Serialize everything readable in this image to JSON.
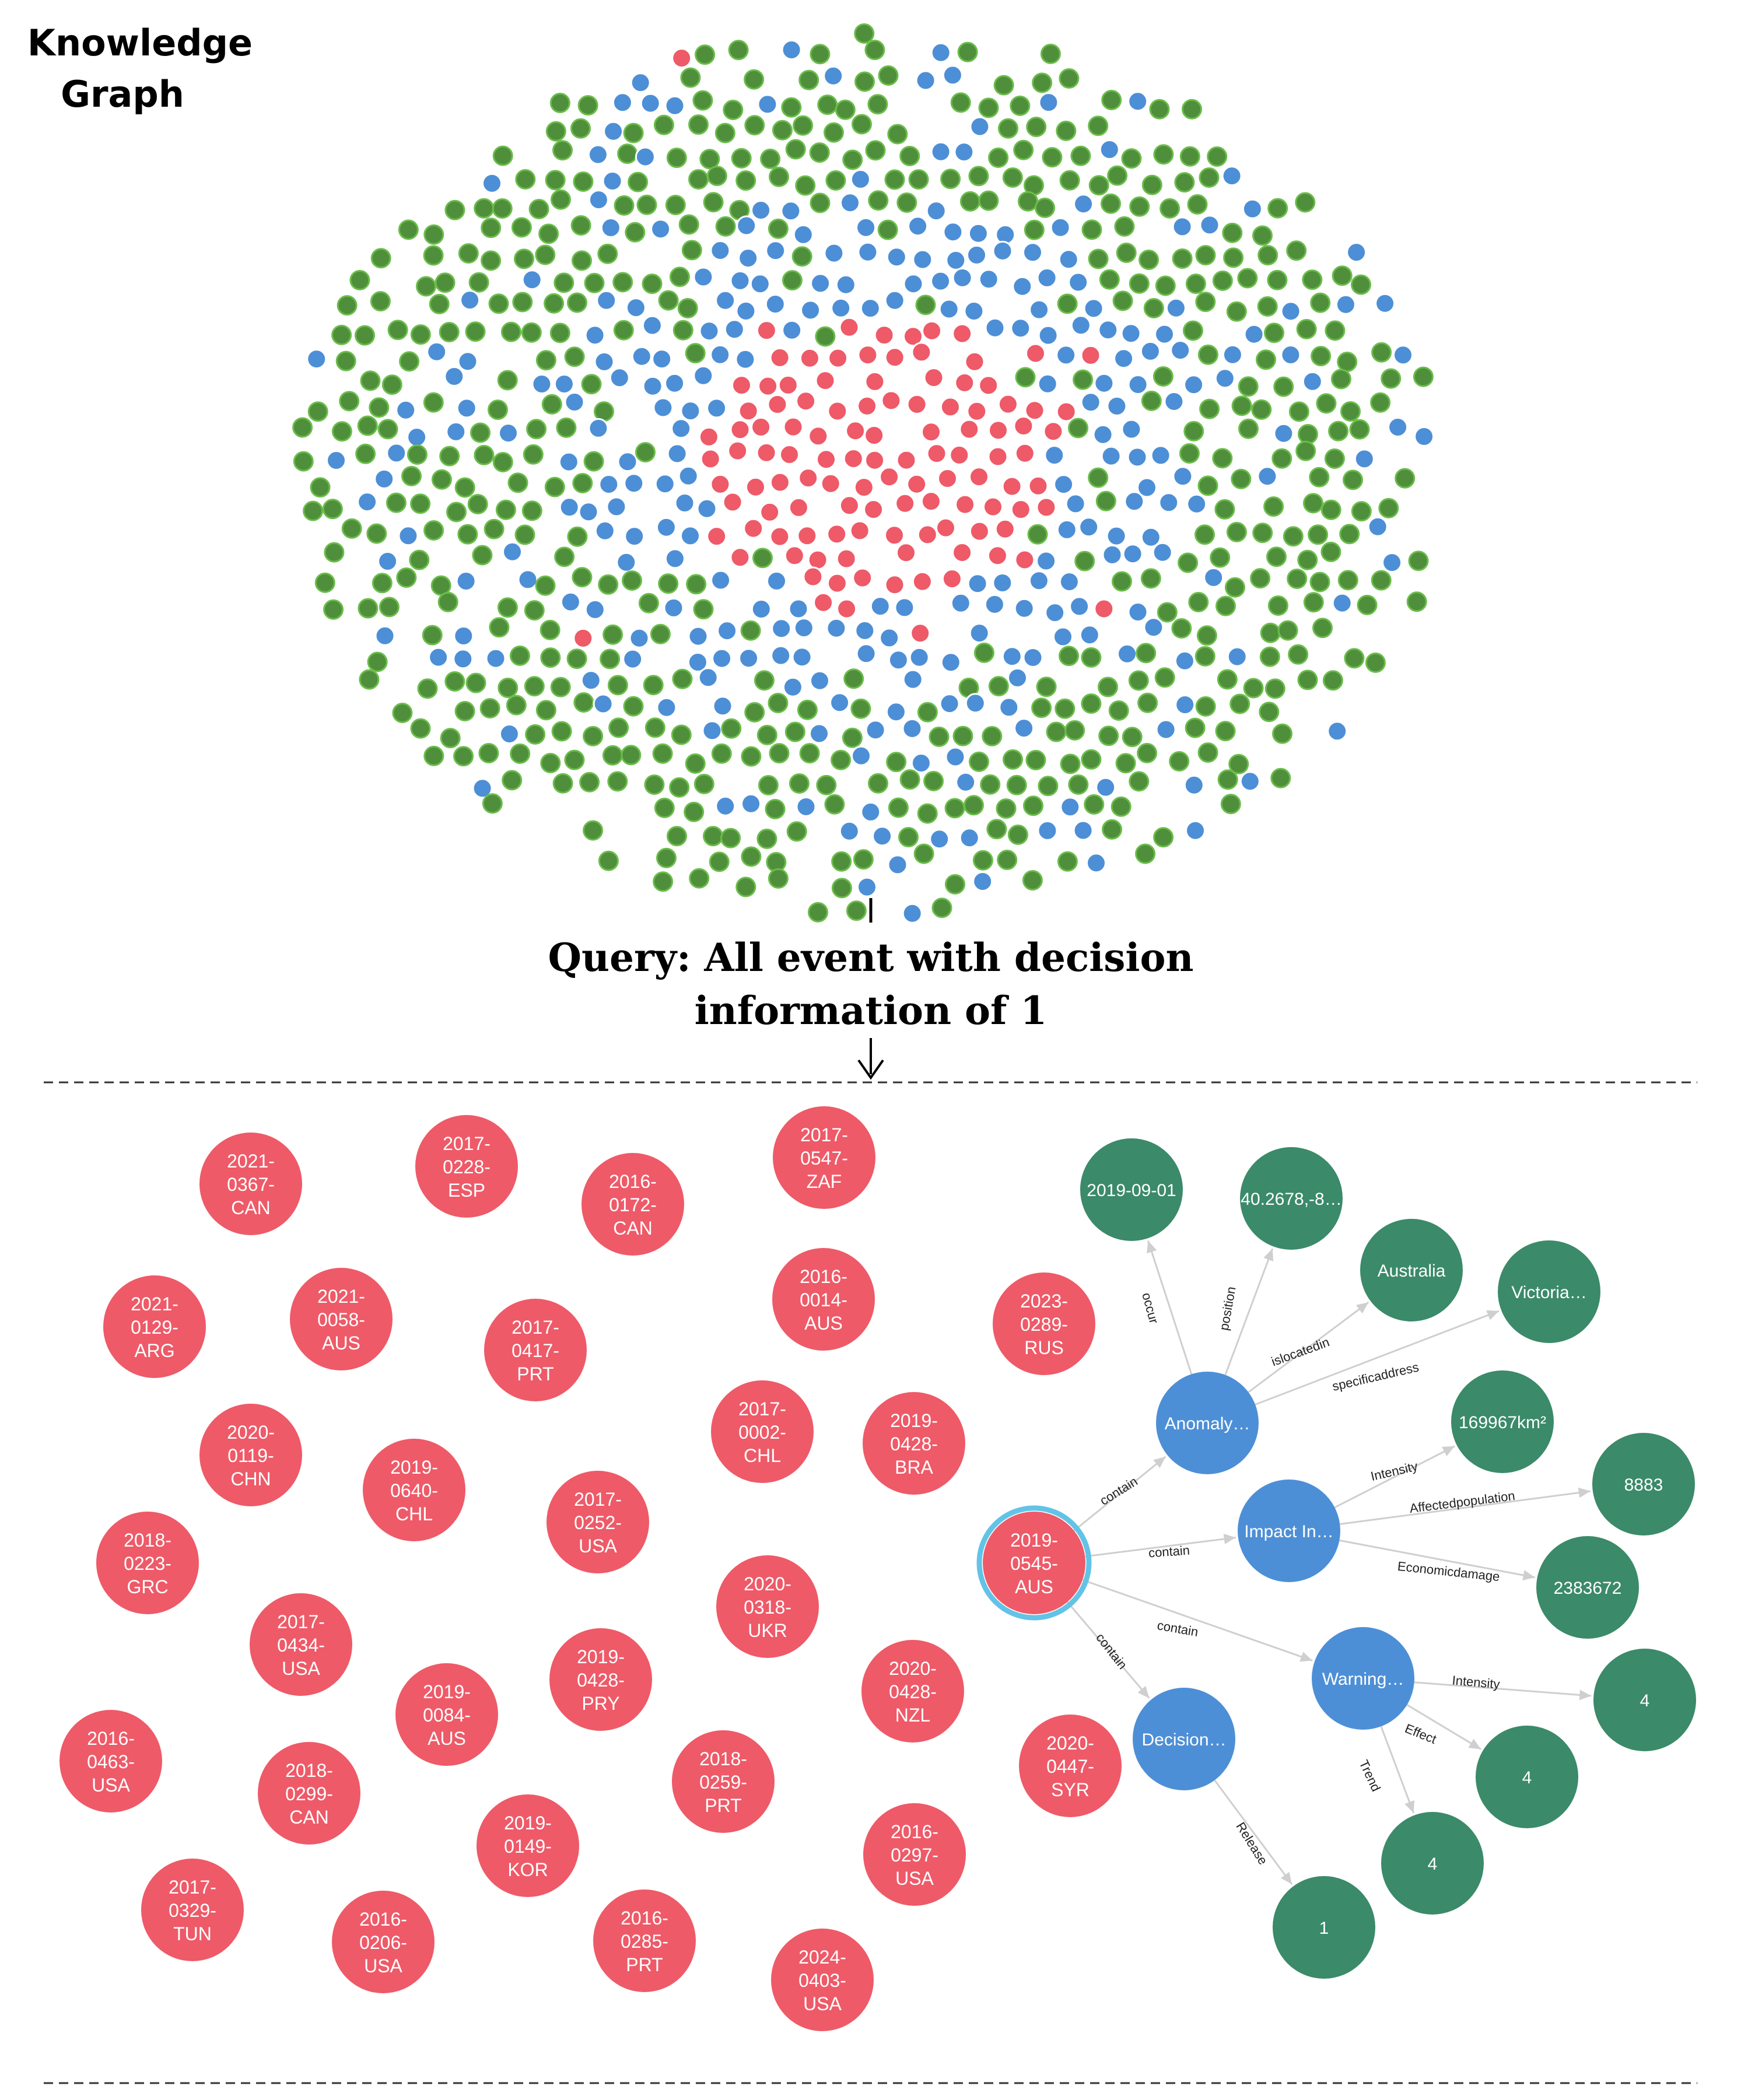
{
  "title": [
    "Knowledge",
    "Graph"
  ],
  "query": [
    "Query: All event with decision",
    "information of 1"
  ],
  "colors": {
    "red": "#ee5a68",
    "blue": "#4d8fd6",
    "green": "#4f8f3b",
    "green_border": "#6bbd4a",
    "dark_green": "#3b8a6a",
    "edge": "#cfcfcf",
    "selected_ring": "#62c3e6",
    "text": "#1a1a1a"
  },
  "event_nodes": [
    [
      "2021-",
      "0367-",
      "CAN"
    ],
    [
      "2017-",
      "0228-",
      "ESP"
    ],
    [
      "2016-",
      "0172-",
      "CAN"
    ],
    [
      "2017-",
      "0547-",
      "ZAF"
    ],
    [
      "2021-",
      "0129-",
      "ARG"
    ],
    [
      "2021-",
      "0058-",
      "AUS"
    ],
    [
      "2017-",
      "0417-",
      "PRT"
    ],
    [
      "2016-",
      "0014-",
      "AUS"
    ],
    [
      "2023-",
      "0289-",
      "RUS"
    ],
    [
      "2020-",
      "0119-",
      "CHN"
    ],
    [
      "2019-",
      "0640-",
      "CHL"
    ],
    [
      "2017-",
      "0002-",
      "CHL"
    ],
    [
      "2019-",
      "0428-",
      "BRA"
    ],
    [
      "2017-",
      "0252-",
      "USA"
    ],
    [
      "2018-",
      "0223-",
      "GRC"
    ],
    [
      "2020-",
      "0318-",
      "UKR"
    ],
    [
      "2017-",
      "0434-",
      "USA"
    ],
    [
      "2019-",
      "0428-",
      "PRY"
    ],
    [
      "2020-",
      "0428-",
      "NZL"
    ],
    [
      "2019-",
      "0084-",
      "AUS"
    ],
    [
      "2016-",
      "0463-",
      "USA"
    ],
    [
      "2018-",
      "0299-",
      "CAN"
    ],
    [
      "2018-",
      "0259-",
      "PRT"
    ],
    [
      "2020-",
      "0447-",
      "SYR"
    ],
    [
      "2019-",
      "0149-",
      "KOR"
    ],
    [
      "2016-",
      "0297-",
      "USA"
    ],
    [
      "2017-",
      "0329-",
      "TUN"
    ],
    [
      "2016-",
      "0206-",
      "USA"
    ],
    [
      "2016-",
      "0285-",
      "PRT"
    ],
    [
      "2024-",
      "0403-",
      "USA"
    ]
  ],
  "selected_event": [
    "2019-",
    "0545-",
    "AUS"
  ],
  "category_nodes": [
    "Anomaly…",
    "Impact In…",
    "Warning…",
    "Decision…"
  ],
  "value_nodes": [
    "2019-09-01",
    "40.2678,-8…",
    "Australia",
    "Victoria…",
    "169967km²",
    "8883",
    "2383672",
    "4",
    "4",
    "4",
    "1"
  ],
  "edge_labels": [
    "occur",
    "position",
    "islocatedin",
    "specificaddress",
    "contain",
    "Intensity",
    "Affectedpopulation",
    "Economicdamage",
    "contain",
    "contain",
    "Intensity",
    "Effect",
    "Trend",
    "Release"
  ]
}
